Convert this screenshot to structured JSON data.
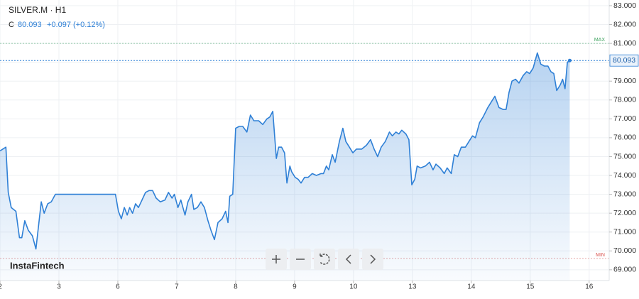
{
  "chart_data": {
    "type": "area",
    "title": "SILVER.M · H1",
    "close_label": "C",
    "change": "+0.097 (+0.12%)",
    "watermark": "InstaFintech",
    "color": "#2f80d6",
    "price_line": 80.093,
    "max_line": 81,
    "max_label": "MAX",
    "min_line": 69.6,
    "min_label": "MIN",
    "grid": true,
    "xlim": [
      0,
      10.34
    ],
    "ylim": [
      68.43,
      83.3
    ],
    "xticks": [
      {
        "value": 0,
        "label": "2"
      },
      {
        "value": 1,
        "label": "3"
      },
      {
        "value": 2,
        "label": "6"
      },
      {
        "value": 3,
        "label": "7"
      },
      {
        "value": 4,
        "label": "8"
      },
      {
        "value": 5,
        "label": "9"
      },
      {
        "value": 6,
        "label": "10"
      },
      {
        "value": 7,
        "label": "13"
      },
      {
        "value": 8,
        "label": "14"
      },
      {
        "value": 9,
        "label": "15"
      },
      {
        "value": 10,
        "label": "16"
      }
    ],
    "yticks": [
      {
        "value": 69,
        "label": "69.000"
      },
      {
        "value": 70,
        "label": "70.000"
      },
      {
        "value": 71,
        "label": "71.000"
      },
      {
        "value": 72,
        "label": "72.000"
      },
      {
        "value": 73,
        "label": "73.000"
      },
      {
        "value": 74,
        "label": "74.000"
      },
      {
        "value": 75,
        "label": "75.000"
      },
      {
        "value": 76,
        "label": "76.000"
      },
      {
        "value": 77,
        "label": "77.000"
      },
      {
        "value": 78,
        "label": "78.000"
      },
      {
        "value": 79,
        "label": "79.000"
      },
      {
        "value": 80,
        "label": "80.000"
      },
      {
        "value": 81,
        "label": "81.000"
      },
      {
        "value": 82,
        "label": "82.000"
      },
      {
        "value": 83,
        "label": "83.000"
      }
    ],
    "x": [
      0,
      0.1,
      0.14,
      0.19,
      0.27,
      0.33,
      0.37,
      0.42,
      0.48,
      0.55,
      0.61,
      0.7,
      0.75,
      0.81,
      0.87,
      0.94,
      1.96,
      2.01,
      2.06,
      2.11,
      2.16,
      2.2,
      2.25,
      2.3,
      2.35,
      2.41,
      2.47,
      2.53,
      2.59,
      2.65,
      2.72,
      2.8,
      2.86,
      2.92,
      2.96,
      3.02,
      3.07,
      3.14,
      3.19,
      3.25,
      3.29,
      3.35,
      3.41,
      3.47,
      3.53,
      3.58,
      3.64,
      3.7,
      3.77,
      3.83,
      3.87,
      3.9,
      3.95,
      4.0,
      4.06,
      4.12,
      4.19,
      4.25,
      4.31,
      4.39,
      4.46,
      4.53,
      4.58,
      4.63,
      4.69,
      4.73,
      4.78,
      4.83,
      4.87,
      4.92,
      4.95,
      5.01,
      5.06,
      5.11,
      5.17,
      5.23,
      5.3,
      5.37,
      5.45,
      5.49,
      5.54,
      5.58,
      5.64,
      5.69,
      5.76,
      5.82,
      5.87,
      5.93,
      5.99,
      6.05,
      6.14,
      6.22,
      6.29,
      6.35,
      6.41,
      6.47,
      6.54,
      6.61,
      6.66,
      6.72,
      6.77,
      6.82,
      6.89,
      6.94,
      6.99,
      7.04,
      7.08,
      7.14,
      7.22,
      7.29,
      7.35,
      7.4,
      7.47,
      7.54,
      7.59,
      7.66,
      7.71,
      7.77,
      7.83,
      7.9,
      7.96,
      8.02,
      8.07,
      8.14,
      8.2,
      8.28,
      8.34,
      8.4,
      8.47,
      8.54,
      8.59,
      8.64,
      8.69,
      8.75,
      8.81,
      8.88,
      8.94,
      8.99,
      9.05,
      9.12,
      9.18,
      9.24,
      9.3,
      9.35,
      9.4,
      9.45,
      9.51,
      9.55,
      9.59,
      9.63,
      9.67
    ],
    "values": [
      75.3,
      75.5,
      73.1,
      72.3,
      72.1,
      70.7,
      70.7,
      71.6,
      71.1,
      70.8,
      70.1,
      72.6,
      72.0,
      72.5,
      72.6,
      73.0,
      73.0,
      72.1,
      71.7,
      72.3,
      71.9,
      72.3,
      72.0,
      72.5,
      72.3,
      72.7,
      73.1,
      73.2,
      73.2,
      72.8,
      72.6,
      72.7,
      73.1,
      72.8,
      73.0,
      72.3,
      72.7,
      71.9,
      72.6,
      73.0,
      72.2,
      72.3,
      72.6,
      72.3,
      71.6,
      71.1,
      70.6,
      71.5,
      71.7,
      72.1,
      71.5,
      72.9,
      73.0,
      76.5,
      76.6,
      76.6,
      76.3,
      77.2,
      76.9,
      76.9,
      76.7,
      77.0,
      77.1,
      77.4,
      74.9,
      75.5,
      75.5,
      75.2,
      73.6,
      74.5,
      74.2,
      73.9,
      73.8,
      73.6,
      73.9,
      73.9,
      74.1,
      74.0,
      74.1,
      74.1,
      74.5,
      74.3,
      75.1,
      74.7,
      75.8,
      76.5,
      75.8,
      75.5,
      75.2,
      75.4,
      75.4,
      75.6,
      75.9,
      75.4,
      75.0,
      75.5,
      75.8,
      76.3,
      76.1,
      76.3,
      76.2,
      76.4,
      76.2,
      75.9,
      73.5,
      73.8,
      74.5,
      74.4,
      74.5,
      74.7,
      74.3,
      74.6,
      74.4,
      74.1,
      74.4,
      74.1,
      75.1,
      75.0,
      75.5,
      75.5,
      75.8,
      76.1,
      76.0,
      76.8,
      77.1,
      77.6,
      77.9,
      78.2,
      77.6,
      77.5,
      77.5,
      78.4,
      79.0,
      79.1,
      78.9,
      79.3,
      79.5,
      79.4,
      79.7,
      80.5,
      79.9,
      79.8,
      79.8,
      79.5,
      79.4,
      78.5,
      78.8,
      79.1,
      78.6,
      80.0,
      80.093
    ]
  }
}
